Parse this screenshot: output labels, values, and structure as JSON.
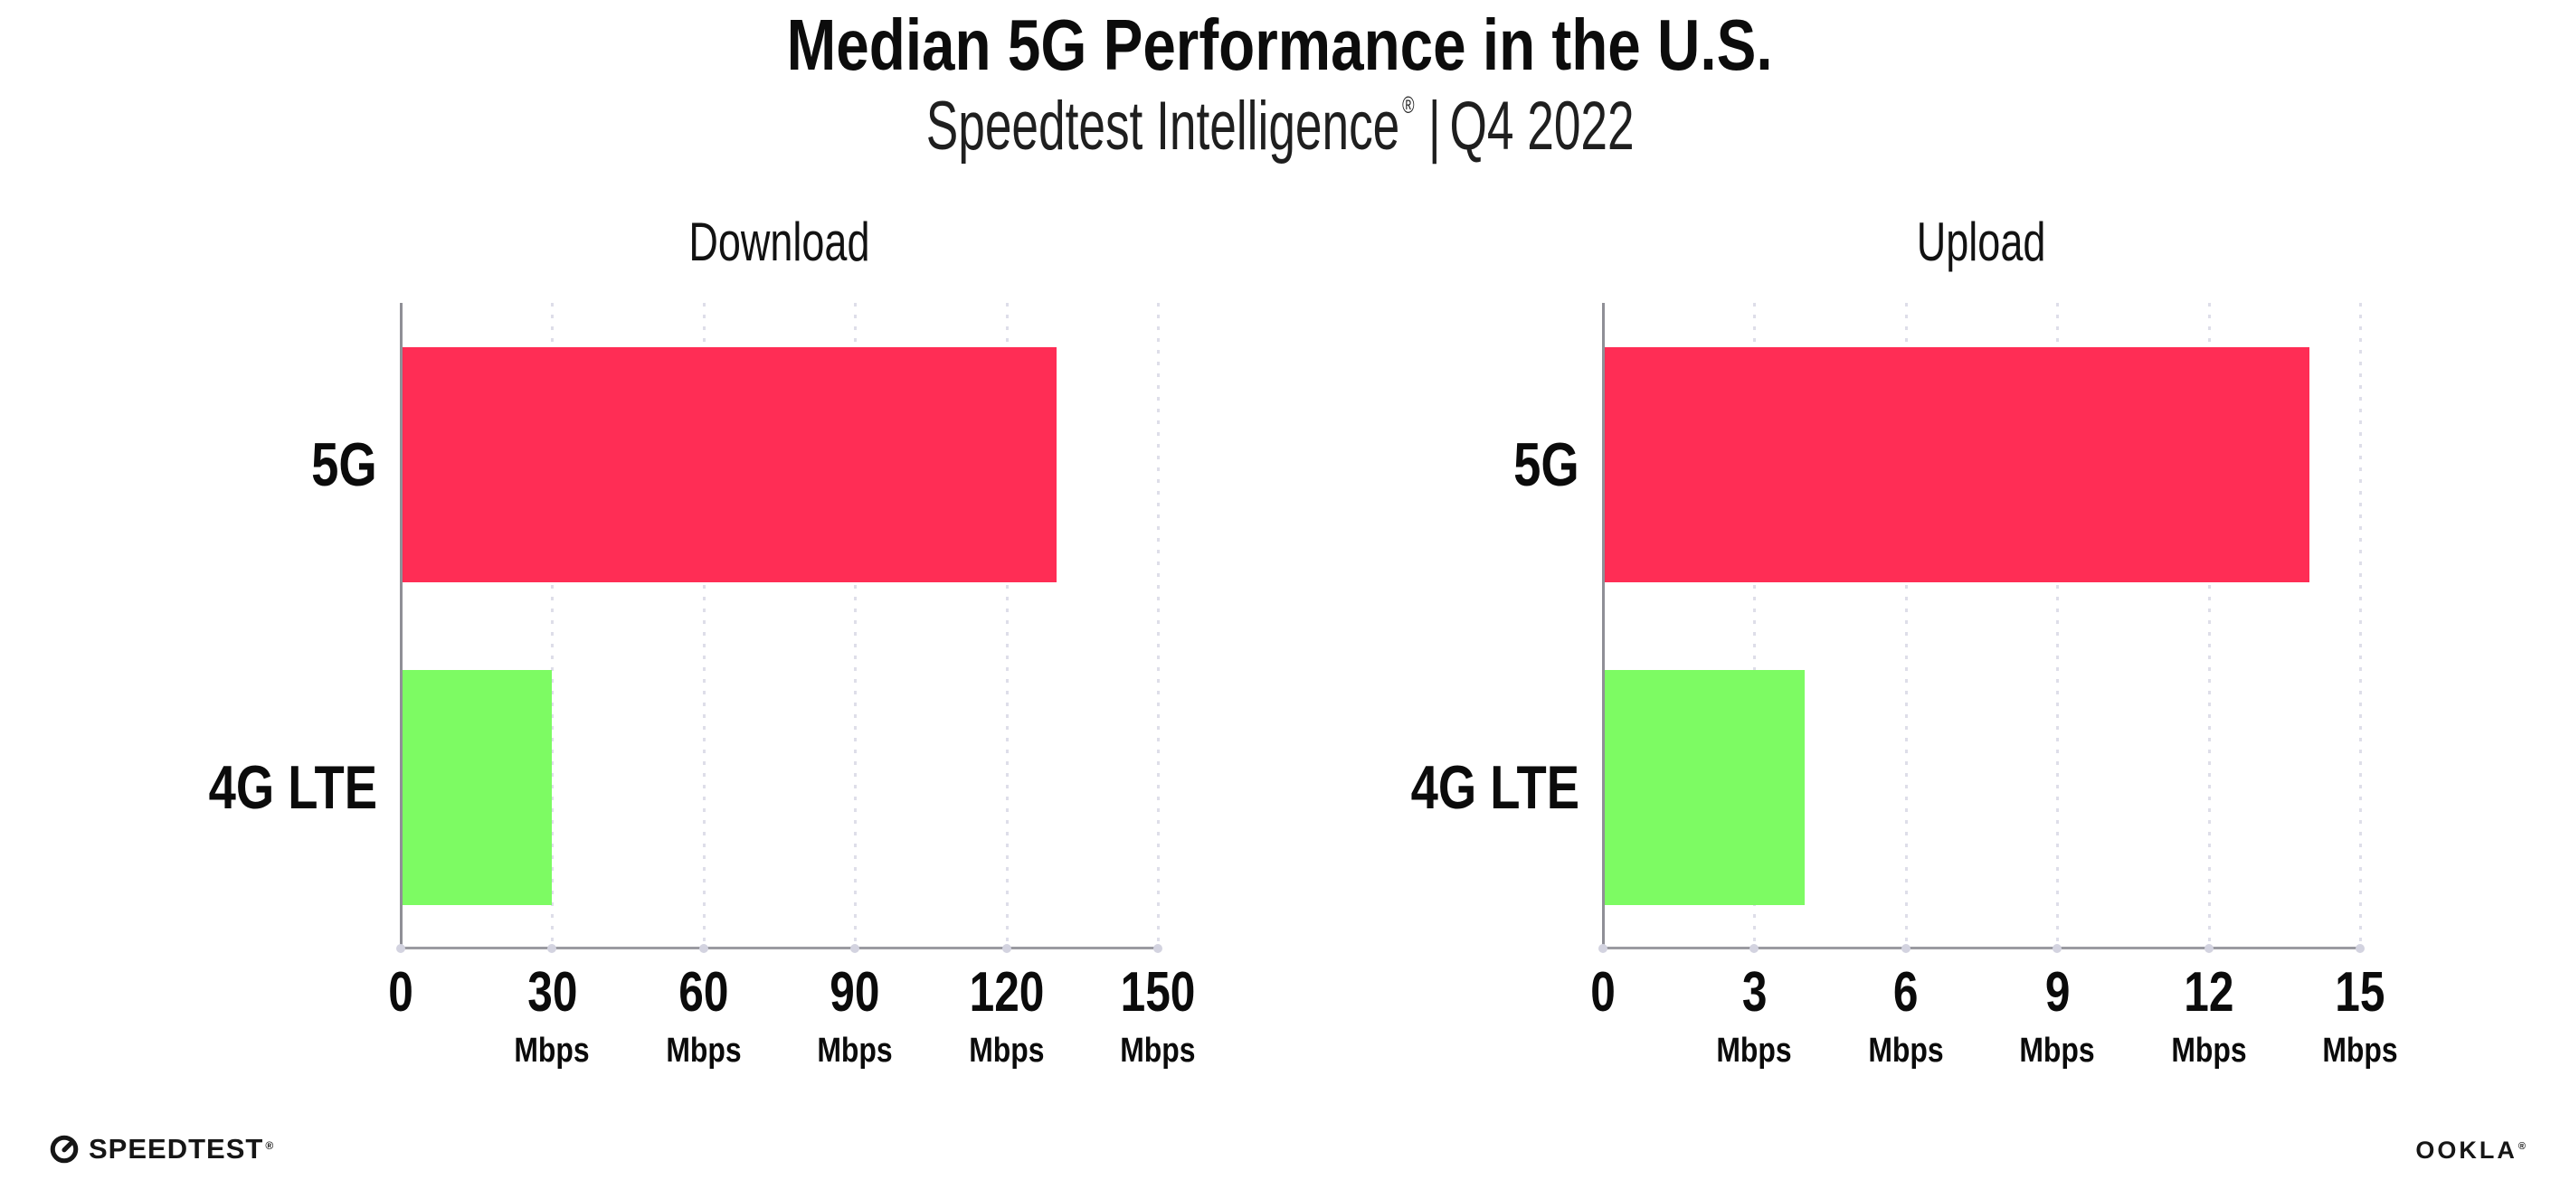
{
  "header": {
    "title": "Median 5G Performance in the U.S.",
    "subtitle_brand": "Speedtest Intelligence",
    "subtitle_trademark": "®",
    "subtitle_separator": "|",
    "subtitle_period": "Q4 2022"
  },
  "chart_data": [
    {
      "type": "bar",
      "orientation": "horizontal",
      "title": "Download",
      "categories": [
        "5G",
        "4G LTE"
      ],
      "values": [
        130,
        30
      ],
      "unit": "Mbps",
      "xlim": [
        0,
        150
      ],
      "xticks": [
        {
          "value": 0,
          "label": "0",
          "unit": ""
        },
        {
          "value": 30,
          "label": "30",
          "unit": "Mbps"
        },
        {
          "value": 60,
          "label": "60",
          "unit": "Mbps"
        },
        {
          "value": 90,
          "label": "90",
          "unit": "Mbps"
        },
        {
          "value": 120,
          "label": "120",
          "unit": "Mbps"
        },
        {
          "value": 150,
          "label": "150",
          "unit": "Mbps"
        }
      ],
      "bar_colors": [
        "#FF2D55",
        "#7DFB63"
      ],
      "grid": "vertical-dotted",
      "legend": "none"
    },
    {
      "type": "bar",
      "orientation": "horizontal",
      "title": "Upload",
      "categories": [
        "5G",
        "4G LTE"
      ],
      "values": [
        14,
        4
      ],
      "unit": "Mbps",
      "xlim": [
        0,
        15
      ],
      "xticks": [
        {
          "value": 0,
          "label": "0",
          "unit": ""
        },
        {
          "value": 3,
          "label": "3",
          "unit": "Mbps"
        },
        {
          "value": 6,
          "label": "6",
          "unit": "Mbps"
        },
        {
          "value": 9,
          "label": "9",
          "unit": "Mbps"
        },
        {
          "value": 12,
          "label": "12",
          "unit": "Mbps"
        },
        {
          "value": 15,
          "label": "15",
          "unit": "Mbps"
        }
      ],
      "bar_colors": [
        "#FF2D55",
        "#7DFB63"
      ],
      "grid": "vertical-dotted",
      "legend": "none"
    }
  ],
  "footer": {
    "speedtest_label": "SPEEDTEST",
    "speedtest_trademark": "®",
    "ookla_label": "OOKLA",
    "ookla_trademark": "®"
  },
  "colors": {
    "bar_5g": "#FF2D55",
    "bar_4g_lte": "#7DFB63",
    "gridline": "#DEDEE9",
    "axis": "#9B9BA1",
    "tick_dot": "#D3D3E0",
    "text": "#0D0D0D",
    "background": "#FFFFFF"
  }
}
